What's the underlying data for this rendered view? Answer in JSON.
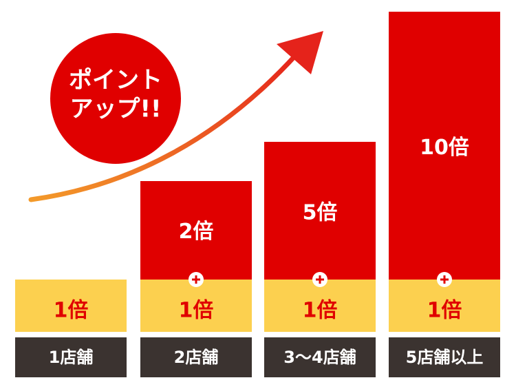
{
  "badge": {
    "lines": [
      "ポイント",
      "アップ!!"
    ]
  },
  "columns": [
    {
      "label": "1店舗",
      "base": "1倍"
    },
    {
      "label": "2店舗",
      "base": "1倍",
      "bonus": "2倍"
    },
    {
      "label": "3〜4店舗",
      "base": "1倍",
      "bonus": "5倍"
    },
    {
      "label": "5店舗以上",
      "base": "1倍",
      "bonus": "10倍"
    }
  ]
}
